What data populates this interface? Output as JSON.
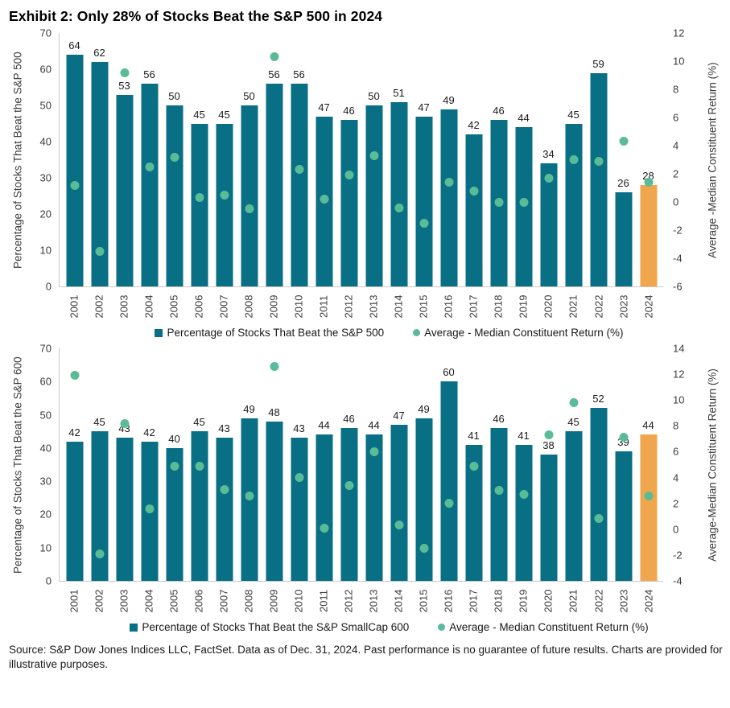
{
  "title": "Exhibit 2: Only 28% of Stocks Beat the S&P 500 in 2024",
  "footer": "Source: S&P Dow Jones Indices LLC, FactSet. Data as of Dec. 31, 2024. Past performance is no guarantee of future results. Charts are provided for illustrative purposes.",
  "colors": {
    "bar_teal": "#086f85",
    "bar_highlight_orange": "#f0a64d",
    "dot_green": "#5abc97",
    "axis_line": "#c9c9c9",
    "text": "#1a1a1a"
  },
  "chart_data": [
    {
      "type": "bar",
      "categories": [
        "2001",
        "2002",
        "2003",
        "2004",
        "2005",
        "2006",
        "2007",
        "2008",
        "2009",
        "2010",
        "2011",
        "2012",
        "2013",
        "2014",
        "2015",
        "2016",
        "2017",
        "2018",
        "2019",
        "2020",
        "2021",
        "2022",
        "2023",
        "2024"
      ],
      "series": [
        {
          "name": "Percentage of Stocks That Beat the S&P 500",
          "type": "bar",
          "axis": "left",
          "highlight_index": 23,
          "values": [
            64,
            62,
            53,
            56,
            50,
            45,
            45,
            50,
            56,
            56,
            47,
            46,
            50,
            51,
            47,
            49,
            42,
            46,
            44,
            34,
            45,
            59,
            26,
            28
          ]
        },
        {
          "name": "Average - Median Constituent Return (%)",
          "type": "scatter",
          "axis": "right",
          "values": [
            1.2,
            -3.5,
            9.2,
            2.5,
            3.2,
            0.3,
            0.5,
            -0.5,
            10.3,
            2.3,
            0.2,
            1.9,
            3.3,
            -0.4,
            -1.5,
            1.4,
            0.8,
            0.0,
            0.0,
            1.7,
            3.0,
            2.9,
            4.3,
            1.4
          ]
        }
      ],
      "axes": {
        "left": {
          "label": "Percentage of Stocks That Beat the S&P 500",
          "min": 0,
          "max": 70,
          "ticks": [
            70,
            60,
            50,
            40,
            30,
            20,
            10,
            0
          ]
        },
        "right": {
          "label": "Average -Median Constituent Return (%)",
          "min": -6,
          "max": 12,
          "ticks": [
            12,
            10,
            8,
            6,
            4,
            2,
            0,
            -2,
            -4,
            -6
          ]
        }
      },
      "legend": [
        {
          "marker": "square",
          "label": "Percentage of Stocks That Beat the S&P 500"
        },
        {
          "marker": "circle",
          "label": "Average - Median Constituent Return (%)"
        }
      ],
      "bar_labels": true,
      "grid": false,
      "legend_position": "bottom"
    },
    {
      "type": "bar",
      "categories": [
        "2001",
        "2002",
        "2003",
        "2004",
        "2005",
        "2006",
        "2007",
        "2008",
        "2009",
        "2010",
        "2011",
        "2012",
        "2013",
        "2014",
        "2015",
        "2016",
        "2017",
        "2018",
        "2019",
        "2020",
        "2021",
        "2022",
        "2023",
        "2024"
      ],
      "series": [
        {
          "name": "Percentage of Stocks That Beat the S&P SmallCap 600",
          "type": "bar",
          "axis": "left",
          "highlight_index": 23,
          "values": [
            42,
            45,
            43,
            42,
            40,
            45,
            43,
            49,
            48,
            43,
            44,
            46,
            44,
            47,
            49,
            60,
            41,
            46,
            41,
            38,
            45,
            52,
            39,
            44
          ]
        },
        {
          "name": "Average - Median Constituent Return (%)",
          "type": "scatter",
          "axis": "right",
          "values": [
            11.9,
            -1.9,
            8.2,
            1.6,
            4.9,
            4.9,
            3.1,
            2.6,
            12.6,
            4.0,
            0.1,
            3.4,
            6.0,
            0.3,
            -1.5,
            2.0,
            4.9,
            3.0,
            2.7,
            7.3,
            9.8,
            0.8,
            7.1,
            2.6
          ]
        }
      ],
      "axes": {
        "left": {
          "label": "Percentage of Stocks That Beat the S&P 600",
          "min": 0,
          "max": 70,
          "ticks": [
            70,
            60,
            50,
            40,
            30,
            20,
            10,
            0
          ]
        },
        "right": {
          "label": "Average-Median Constituent Return (%)",
          "min": -4,
          "max": 14,
          "ticks": [
            14,
            12,
            10,
            8,
            6,
            4,
            2,
            0,
            -2,
            -4
          ]
        }
      },
      "legend": [
        {
          "marker": "square",
          "label": "Percentage of Stocks That Beat the S&P SmallCap 600"
        },
        {
          "marker": "circle",
          "label": "Average - Median Constituent Return (%)"
        }
      ],
      "bar_labels": true,
      "grid": false,
      "legend_position": "bottom"
    }
  ]
}
